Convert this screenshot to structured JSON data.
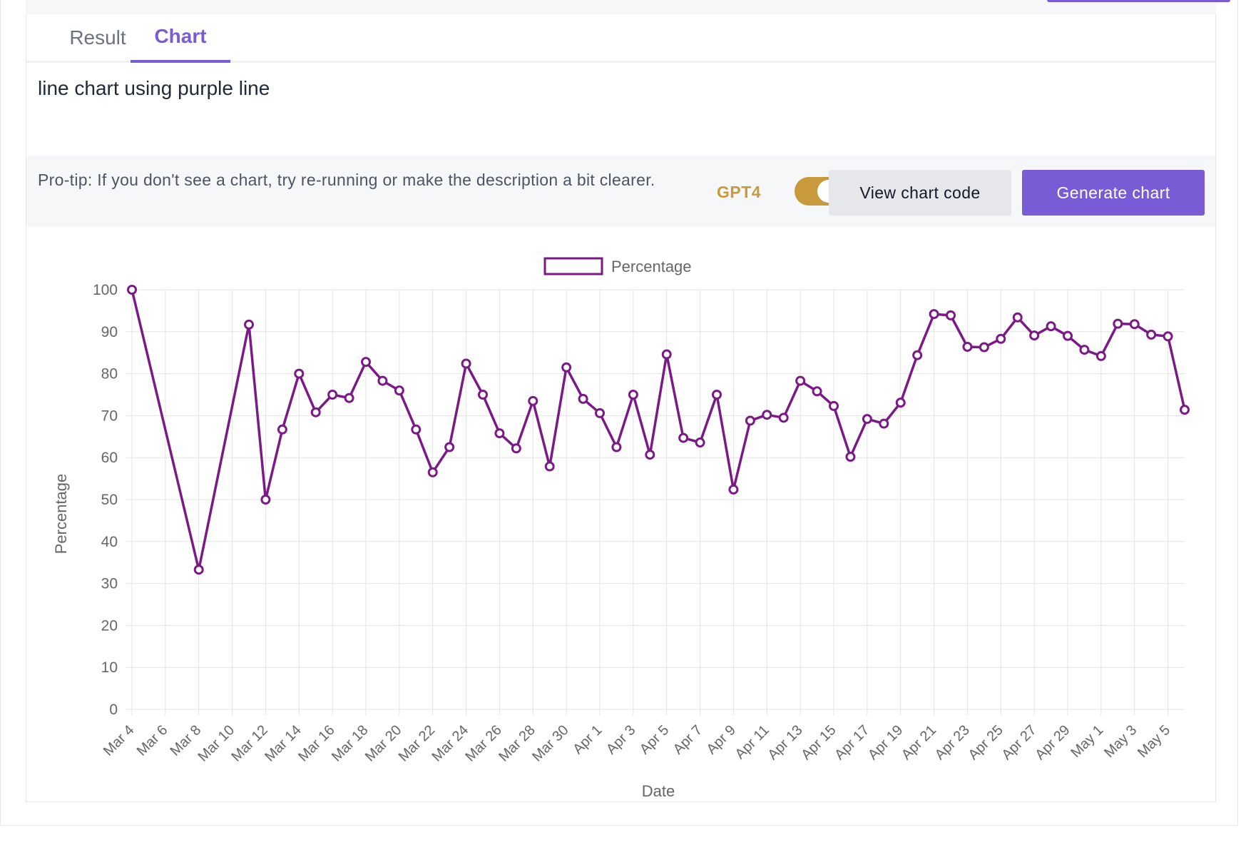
{
  "tabs": [
    {
      "label": "Result"
    },
    {
      "label": "Chart"
    }
  ],
  "description": {
    "value": "line chart using purple line"
  },
  "toolbar": {
    "protip": "Pro-tip: If you don't see a chart, try re-running or make the description a bit clearer.",
    "gpt4_label": "GPT4",
    "gpt4_enabled": true,
    "view_code_label": "View chart code",
    "generate_label": "Generate chart"
  },
  "colors": {
    "accent": "#7a5bd6",
    "line": "#7b1a86",
    "toggle": "#c99a3c"
  },
  "chart_data": {
    "type": "line",
    "title": "",
    "xlabel": "Date",
    "ylabel": "Percentage",
    "ylim": [
      0,
      100
    ],
    "yticks": [
      0,
      10,
      20,
      30,
      40,
      50,
      60,
      70,
      80,
      90,
      100
    ],
    "grid": true,
    "legend_position": "top-center",
    "x_tick_labels": [
      "Mar 4",
      "Mar 6",
      "Mar 8",
      "Mar 10",
      "Mar 12",
      "Mar 14",
      "Mar 16",
      "Mar 18",
      "Mar 20",
      "Mar 22",
      "Mar 24",
      "Mar 26",
      "Mar 28",
      "Mar 30",
      "Apr 1",
      "Apr 3",
      "Apr 5",
      "Apr 7",
      "Apr 9",
      "Apr 11",
      "Apr 13",
      "Apr 15",
      "Apr 17",
      "Apr 19",
      "Apr 21",
      "Apr 23",
      "Apr 25",
      "Apr 27",
      "Apr 29",
      "May 1",
      "May 3",
      "May 5"
    ],
    "series": [
      {
        "name": "Percentage",
        "points": [
          {
            "x": "Mar 4",
            "y": 100
          },
          {
            "x": "Mar 8",
            "y": 33.3
          },
          {
            "x": "Mar 11",
            "y": 91.7
          },
          {
            "x": "Mar 12",
            "y": 50
          },
          {
            "x": "Mar 13",
            "y": 66.7
          },
          {
            "x": "Mar 14",
            "y": 80
          },
          {
            "x": "Mar 15",
            "y": 70.8
          },
          {
            "x": "Mar 16",
            "y": 75
          },
          {
            "x": "Mar 17",
            "y": 74.2
          },
          {
            "x": "Mar 18",
            "y": 82.8
          },
          {
            "x": "Mar 19",
            "y": 78.3
          },
          {
            "x": "Mar 20",
            "y": 76
          },
          {
            "x": "Mar 21",
            "y": 66.7
          },
          {
            "x": "Mar 22",
            "y": 56.5
          },
          {
            "x": "Mar 23",
            "y": 62.5
          },
          {
            "x": "Mar 24",
            "y": 82.4
          },
          {
            "x": "Mar 25",
            "y": 75
          },
          {
            "x": "Mar 26",
            "y": 65.8
          },
          {
            "x": "Mar 27",
            "y": 62.2
          },
          {
            "x": "Mar 28",
            "y": 73.5
          },
          {
            "x": "Mar 29",
            "y": 57.9
          },
          {
            "x": "Mar 30",
            "y": 81.5
          },
          {
            "x": "Mar 31",
            "y": 74
          },
          {
            "x": "Apr 1",
            "y": 70.6
          },
          {
            "x": "Apr 2",
            "y": 62.5
          },
          {
            "x": "Apr 3",
            "y": 75
          },
          {
            "x": "Apr 4",
            "y": 60.7
          },
          {
            "x": "Apr 5",
            "y": 84.6
          },
          {
            "x": "Apr 6",
            "y": 64.7
          },
          {
            "x": "Apr 7",
            "y": 63.6
          },
          {
            "x": "Apr 8",
            "y": 75
          },
          {
            "x": "Apr 9",
            "y": 52.4
          },
          {
            "x": "Apr 10",
            "y": 68.8
          },
          {
            "x": "Apr 11",
            "y": 70.2
          },
          {
            "x": "Apr 12",
            "y": 69.5
          },
          {
            "x": "Apr 13",
            "y": 78.3
          },
          {
            "x": "Apr 14",
            "y": 75.8
          },
          {
            "x": "Apr 15",
            "y": 72.3
          },
          {
            "x": "Apr 16",
            "y": 60.2
          },
          {
            "x": "Apr 17",
            "y": 69.2
          },
          {
            "x": "Apr 18",
            "y": 68.1
          },
          {
            "x": "Apr 19",
            "y": 73.1
          },
          {
            "x": "Apr 20",
            "y": 84.4
          },
          {
            "x": "Apr 21",
            "y": 94.2
          },
          {
            "x": "Apr 22",
            "y": 93.9
          },
          {
            "x": "Apr 23",
            "y": 86.4
          },
          {
            "x": "Apr 24",
            "y": 86.3
          },
          {
            "x": "Apr 25",
            "y": 88.3
          },
          {
            "x": "Apr 26",
            "y": 93.4
          },
          {
            "x": "Apr 27",
            "y": 89.1
          },
          {
            "x": "Apr 28",
            "y": 91.3
          },
          {
            "x": "Apr 29",
            "y": 89
          },
          {
            "x": "Apr 30",
            "y": 85.7
          },
          {
            "x": "May 1",
            "y": 84.2
          },
          {
            "x": "May 2",
            "y": 91.9
          },
          {
            "x": "May 3",
            "y": 91.8
          },
          {
            "x": "May 4",
            "y": 89.3
          },
          {
            "x": "May 5",
            "y": 88.9
          },
          {
            "x": "May 6",
            "y": 71.4
          }
        ]
      }
    ]
  }
}
